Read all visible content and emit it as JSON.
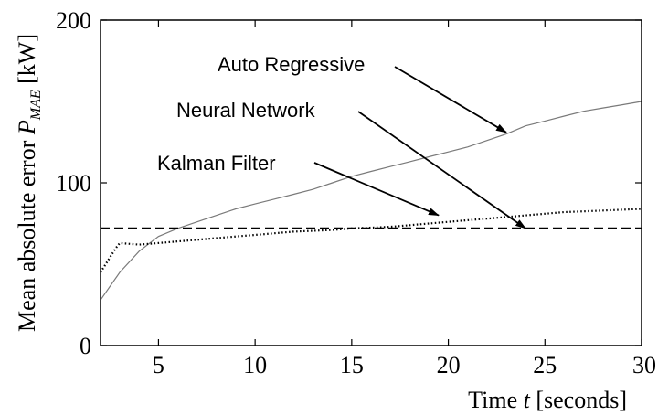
{
  "chart_data": {
    "type": "line",
    "xlim": [
      2,
      30
    ],
    "ylim": [
      0,
      200
    ],
    "x_ticks": [
      5,
      10,
      15,
      20,
      25,
      30
    ],
    "y_ticks": [
      0,
      100,
      200
    ],
    "x_tick_labels": [
      "5",
      "10",
      "15",
      "20",
      "25",
      "30"
    ],
    "y_tick_labels": [
      "0",
      "100",
      "200"
    ],
    "xlabel": {
      "prefix": "Time ",
      "var": "t",
      "suffix": " [seconds]"
    },
    "ylabel": {
      "prefix": "Mean absolute error ",
      "var": "P",
      "sub": "MAE",
      "suffix": " [kW]"
    },
    "grid": false,
    "series": [
      {
        "name": "Auto Regressive",
        "style": "solid",
        "color": "#7a7a7a",
        "x": [
          2,
          3,
          4,
          5,
          6,
          7,
          8,
          9,
          10,
          11,
          12,
          13,
          14,
          15,
          16,
          17,
          18,
          19,
          20,
          21,
          22,
          23,
          24,
          25,
          26,
          27,
          28,
          29,
          30
        ],
        "y": [
          28,
          45,
          58,
          67,
          72,
          76,
          80,
          84,
          87,
          90,
          93,
          96,
          100,
          104,
          107,
          110,
          113,
          116,
          119,
          122,
          126,
          130,
          135,
          138,
          141,
          144,
          146,
          148,
          150
        ]
      },
      {
        "name": "Kalman Filter",
        "style": "dotted",
        "color": "#000000",
        "x": [
          2,
          2.8,
          3,
          4,
          5,
          6,
          7,
          8,
          9,
          10,
          11,
          12,
          13,
          14,
          15,
          16,
          17,
          18,
          19,
          20,
          21,
          22,
          23,
          24,
          25,
          26,
          27,
          28,
          29,
          30
        ],
        "y": [
          45,
          60,
          63,
          62,
          63,
          64,
          65,
          66,
          67,
          68,
          69,
          70,
          70.5,
          71,
          72,
          72.5,
          73,
          74,
          75,
          76,
          77,
          78,
          79,
          80,
          81,
          82,
          82.5,
          83,
          83.5,
          84
        ]
      },
      {
        "name": "Neural Network",
        "style": "dashed",
        "color": "#000000",
        "x": [
          2,
          30
        ],
        "y": [
          72,
          72
        ]
      }
    ],
    "annotations": [
      {
        "text": "Auto Regressive",
        "target": [
          23,
          131
        ]
      },
      {
        "text": "Neural Network",
        "target": [
          24,
          72
        ]
      },
      {
        "text": "Kalman Filter",
        "target": [
          19.5,
          80
        ]
      }
    ]
  }
}
